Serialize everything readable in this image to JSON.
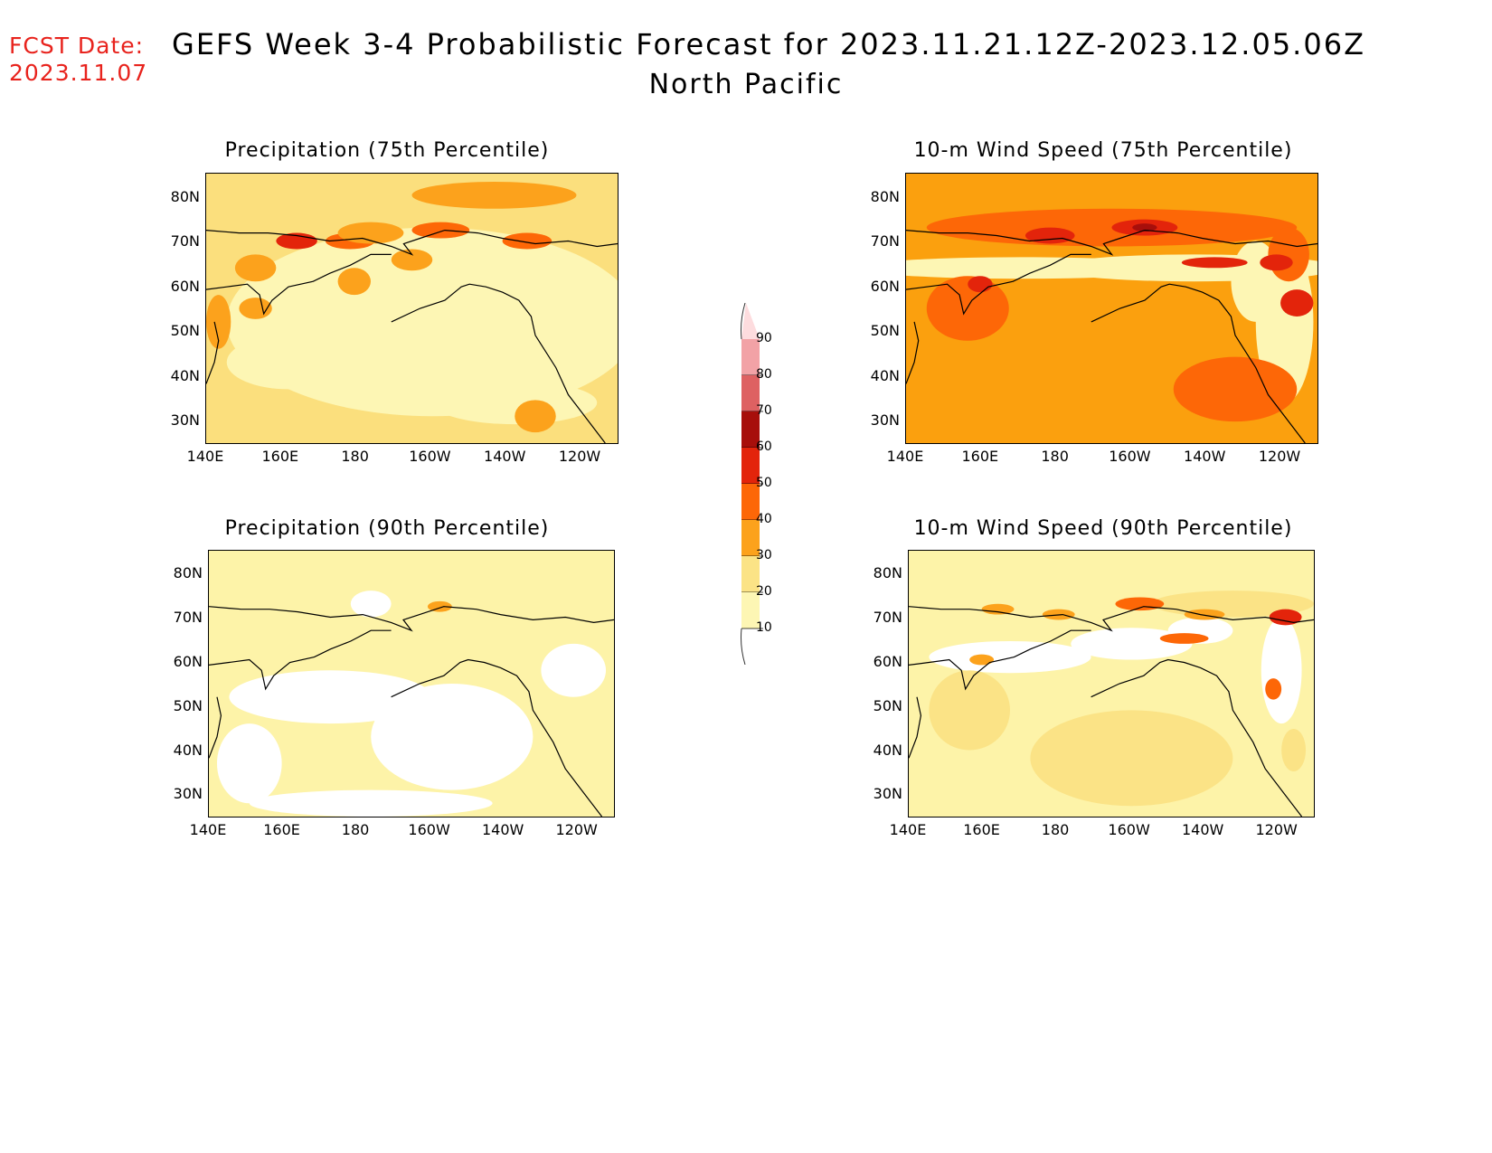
{
  "header": {
    "fcst_label": "FCST Date:",
    "fcst_date": "2023.11.07",
    "title": "GEFS Week 3-4 Probabilistic Forecast for 2023.11.21.12Z-2023.12.05.06Z",
    "subtitle": "North Pacific"
  },
  "panels": [
    {
      "title": "Precipitation (75th Percentile)",
      "base": "#fbdf7d"
    },
    {
      "title": "10-m Wind Speed (75th Percentile)",
      "base": "#fba00e"
    },
    {
      "title": "Precipitation (90th Percentile)",
      "base": "#fdf3a8"
    },
    {
      "title": "10-m Wind Speed (90th Percentile)",
      "base": "#fdf3a8"
    }
  ],
  "lat_labels": [
    "80N",
    "70N",
    "60N",
    "50N",
    "40N",
    "30N"
  ],
  "lon_labels": [
    "140E",
    "160E",
    "180",
    "160W",
    "140W",
    "120W"
  ],
  "colorbar": {
    "levels": [
      "10",
      "20",
      "30",
      "40",
      "50",
      "60",
      "70",
      "80",
      "90"
    ],
    "colors": [
      "#fdf6b4",
      "#fbe386",
      "#fca21c",
      "#fd6707",
      "#e3240b",
      "#a70f0b",
      "#de6162",
      "#f2a2a6",
      "#fddcde"
    ]
  }
}
